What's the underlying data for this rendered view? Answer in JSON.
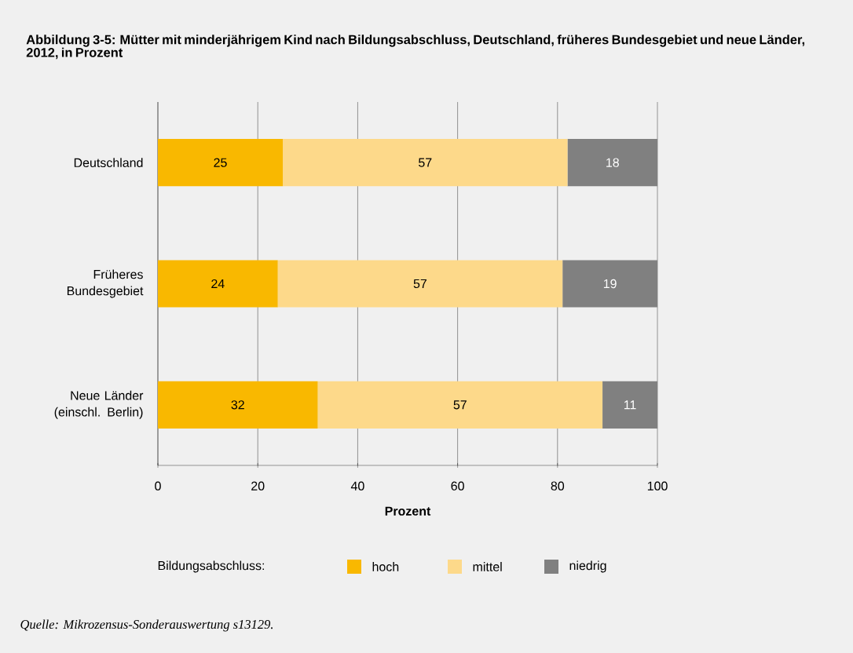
{
  "chart_data": {
    "type": "bar",
    "orientation": "horizontal",
    "stacked": true,
    "title": "Abbildung 3-5: Mütter mit minderjährigem Kind nach Bildungsabschluss, Deutschland, früheres Bundesgebiet und neue Länder, 2012, in Prozent",
    "categories": [
      "Deutschland",
      "Früheres Bundesgebiet",
      "Neue Länder (einschl. Berlin)"
    ],
    "series": [
      {
        "name": "hoch",
        "color": "#f9b800",
        "values": [
          25,
          24,
          32
        ]
      },
      {
        "name": "mittel",
        "color": "#fdd98a",
        "values": [
          57,
          57,
          57
        ]
      },
      {
        "name": "niedrig",
        "color": "#808080",
        "values": [
          18,
          19,
          11
        ]
      }
    ],
    "xlim": [
      0,
      100
    ],
    "xticks": [
      0,
      20,
      40,
      60,
      80,
      100
    ],
    "xlabel": "Prozent",
    "grid": "x",
    "data_labels": true,
    "legend": "bottom",
    "legend_title": "Bildungsabschluss:",
    "annotations": [
      "Quelle: Mikrozensus-Sonderauswertung s13129."
    ]
  }
}
